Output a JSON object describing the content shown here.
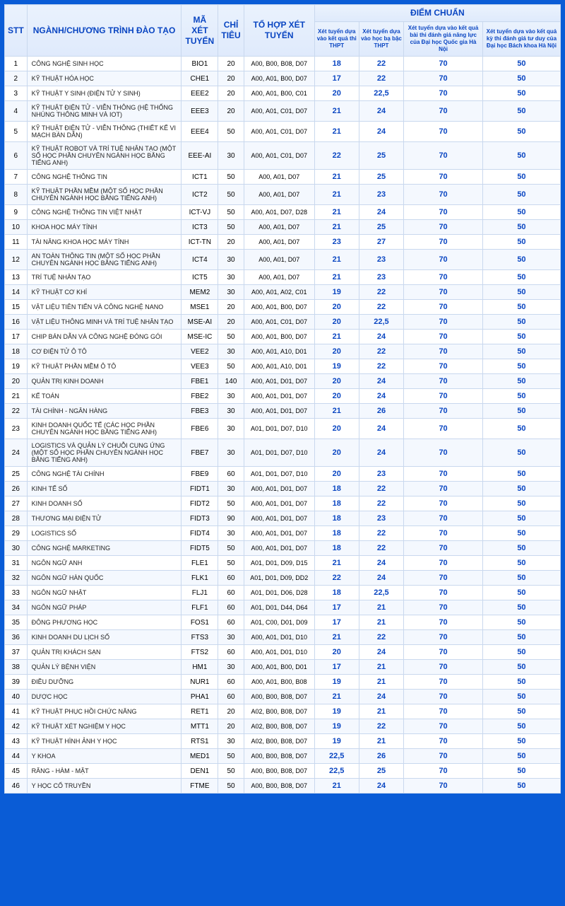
{
  "colors": {
    "page_bg": "#0a5cd6",
    "header_grad_top": "#eaf2fd",
    "header_grad_bottom": "#dfeafc",
    "header_text": "#0a46c2",
    "border": "#c9d8ee",
    "row_even_bg": "#f4f8fe",
    "row_odd_bg": "#ffffff",
    "score_text": "#0a46c2",
    "body_text": "#222222"
  },
  "typography": {
    "base_font": "Arial",
    "header_main_fontsize": 12,
    "subheader_fontsize": 8,
    "body_fontsize": 10,
    "name_fontsize": 9,
    "score_fontsize": 11
  },
  "headers": {
    "stt": "STT",
    "name": "NGÀNH/CHƯƠNG TRÌNH ĐÀO TẠO",
    "code": "MÃ XÉT TUYỂN",
    "quota": "CHỈ TIÊU",
    "combo": "TỔ HỢP XÉT TUYỂN",
    "score_group": "ĐIỂM CHUẨN",
    "score_cols": [
      "Xét tuyển dựa vào kết quả thi THPT",
      "Xét tuyển dựa vào học bạ bậc THPT",
      "Xét tuyển dựa vào kết quả bài thi đánh giá năng lực của Đại học Quốc gia Hà Nội",
      "Xét tuyển dựa vào kết quả kỳ thi đánh giá tư duy của Đại học Bách khoa Hà Nội"
    ]
  },
  "rows": [
    {
      "stt": "1",
      "name": "CÔNG NGHỆ SINH HỌC",
      "code": "BIO1",
      "quota": "20",
      "combo": "A00, B00, B08, D07",
      "s": [
        "18",
        "22",
        "70",
        "50"
      ]
    },
    {
      "stt": "2",
      "name": "KỸ THUẬT HÓA HỌC",
      "code": "CHE1",
      "quota": "20",
      "combo": "A00, A01, B00, D07",
      "s": [
        "17",
        "22",
        "70",
        "50"
      ]
    },
    {
      "stt": "3",
      "name": "KỸ THUẬT Y SINH (ĐIỆN TỬ Y SINH)",
      "code": "EEE2",
      "quota": "20",
      "combo": "A00, A01, B00, C01",
      "s": [
        "20",
        "22,5",
        "70",
        "50"
      ]
    },
    {
      "stt": "4",
      "name": "KỸ THUẬT ĐIỆN TỬ - VIỄN THÔNG (HỆ THỐNG NHÚNG THÔNG MINH VÀ IOT)",
      "code": "EEE3",
      "quota": "20",
      "combo": "A00, A01, C01, D07",
      "s": [
        "21",
        "24",
        "70",
        "50"
      ]
    },
    {
      "stt": "5",
      "name": "KỸ THUẬT ĐIỆN TỬ - VIỄN THÔNG (THIẾT KẾ VI MẠCH BÁN DẪN)",
      "code": "EEE4",
      "quota": "50",
      "combo": "A00, A01, C01, D07",
      "s": [
        "21",
        "24",
        "70",
        "50"
      ]
    },
    {
      "stt": "6",
      "name": "KỸ THUẬT ROBOT VÀ TRÍ TUỆ NHÂN TẠO (MỘT SỐ HỌC PHẦN CHUYÊN NGÀNH HỌC BẰNG TIẾNG ANH)",
      "code": "EEE-AI",
      "quota": "30",
      "combo": "A00, A01, C01, D07",
      "s": [
        "22",
        "25",
        "70",
        "50"
      ]
    },
    {
      "stt": "7",
      "name": "CÔNG NGHỆ THÔNG TIN",
      "code": "ICT1",
      "quota": "50",
      "combo": "A00, A01, D07",
      "s": [
        "21",
        "25",
        "70",
        "50"
      ]
    },
    {
      "stt": "8",
      "name": "KỸ THUẬT PHẦN MỀM (MỘT SỐ HỌC PHẦN CHUYÊN NGÀNH HỌC BẰNG TIẾNG ANH)",
      "code": "ICT2",
      "quota": "50",
      "combo": "A00, A01, D07",
      "s": [
        "21",
        "23",
        "70",
        "50"
      ]
    },
    {
      "stt": "9",
      "name": "CÔNG NGHỆ THÔNG TIN VIỆT NHẬT",
      "code": "ICT-VJ",
      "quota": "50",
      "combo": "A00, A01, D07, D28",
      "s": [
        "21",
        "24",
        "70",
        "50"
      ]
    },
    {
      "stt": "10",
      "name": "KHOA HỌC MÁY TÍNH",
      "code": "ICT3",
      "quota": "50",
      "combo": "A00, A01, D07",
      "s": [
        "21",
        "25",
        "70",
        "50"
      ]
    },
    {
      "stt": "11",
      "name": "TÀI NĂNG KHOA HỌC MÁY TÍNH",
      "code": "ICT-TN",
      "quota": "20",
      "combo": "A00, A01, D07",
      "s": [
        "23",
        "27",
        "70",
        "50"
      ]
    },
    {
      "stt": "12",
      "name": "AN TOÀN THÔNG TIN (MỘT SỐ HỌC PHẦN CHUYÊN NGÀNH HỌC BẰNG TIẾNG ANH)",
      "code": "ICT4",
      "quota": "30",
      "combo": "A00, A01, D07",
      "s": [
        "21",
        "23",
        "70",
        "50"
      ]
    },
    {
      "stt": "13",
      "name": "TRÍ TUỆ NHÂN TẠO",
      "code": "ICT5",
      "quota": "30",
      "combo": "A00, A01, D07",
      "s": [
        "21",
        "23",
        "70",
        "50"
      ]
    },
    {
      "stt": "14",
      "name": "KỸ THUẬT CƠ KHÍ",
      "code": "MEM2",
      "quota": "30",
      "combo": "A00, A01, A02, C01",
      "s": [
        "19",
        "22",
        "70",
        "50"
      ]
    },
    {
      "stt": "15",
      "name": "VẬT LIỆU TIÊN TIẾN VÀ CÔNG NGHỆ NANO",
      "code": "MSE1",
      "quota": "20",
      "combo": "A00, A01, B00, D07",
      "s": [
        "20",
        "22",
        "70",
        "50"
      ]
    },
    {
      "stt": "16",
      "name": "VẬT LIỆU THÔNG MINH VÀ TRÍ TUỆ NHÂN TẠO",
      "code": "MSE-AI",
      "quota": "20",
      "combo": "A00, A01, C01, D07",
      "s": [
        "20",
        "22,5",
        "70",
        "50"
      ]
    },
    {
      "stt": "17",
      "name": "CHIP BÁN DẪN VÀ CÔNG NGHỆ ĐÓNG GÓI",
      "code": "MSE-IC",
      "quota": "50",
      "combo": "A00, A01, B00, D07",
      "s": [
        "21",
        "24",
        "70",
        "50"
      ]
    },
    {
      "stt": "18",
      "name": "CƠ ĐIỆN TỬ Ô TÔ",
      "code": "VEE2",
      "quota": "30",
      "combo": "A00, A01, A10, D01",
      "s": [
        "20",
        "22",
        "70",
        "50"
      ]
    },
    {
      "stt": "19",
      "name": "KỸ THUẬT PHẦN MỀM Ô TÔ",
      "code": "VEE3",
      "quota": "50",
      "combo": "A00, A01, A10, D01",
      "s": [
        "19",
        "22",
        "70",
        "50"
      ]
    },
    {
      "stt": "20",
      "name": "QUẢN TRỊ KINH DOANH",
      "code": "FBE1",
      "quota": "140",
      "combo": "A00, A01, D01, D07",
      "s": [
        "20",
        "24",
        "70",
        "50"
      ]
    },
    {
      "stt": "21",
      "name": "KẾ TOÁN",
      "code": "FBE2",
      "quota": "30",
      "combo": "A00, A01, D01, D07",
      "s": [
        "20",
        "24",
        "70",
        "50"
      ]
    },
    {
      "stt": "22",
      "name": "TÀI CHÍNH - NGÂN HÀNG",
      "code": "FBE3",
      "quota": "30",
      "combo": "A00, A01, D01, D07",
      "s": [
        "21",
        "26",
        "70",
        "50"
      ]
    },
    {
      "stt": "23",
      "name": "KINH DOANH QUỐC TẾ (CÁC HỌC PHẦN CHUYÊN NGÀNH HỌC BẰNG TIẾNG ANH)",
      "code": "FBE6",
      "quota": "30",
      "combo": "A01, D01, D07, D10",
      "s": [
        "20",
        "24",
        "70",
        "50"
      ]
    },
    {
      "stt": "24",
      "name": "LOGISTICS VÀ QUẢN LÝ CHUỖI CUNG ỨNG (MỘT SỐ HỌC PHẦN CHUYÊN NGÀNH HỌC BẰNG TIẾNG ANH)",
      "code": "FBE7",
      "quota": "30",
      "combo": "A01, D01, D07, D10",
      "s": [
        "20",
        "24",
        "70",
        "50"
      ]
    },
    {
      "stt": "25",
      "name": "CÔNG NGHỆ TÀI CHÍNH",
      "code": "FBE9",
      "quota": "60",
      "combo": "A01, D01, D07, D10",
      "s": [
        "20",
        "23",
        "70",
        "50"
      ]
    },
    {
      "stt": "26",
      "name": "KINH TẾ SỐ",
      "code": "FIDT1",
      "quota": "30",
      "combo": "A00, A01, D01, D07",
      "s": [
        "18",
        "22",
        "70",
        "50"
      ]
    },
    {
      "stt": "27",
      "name": "KINH DOANH SỐ",
      "code": "FIDT2",
      "quota": "50",
      "combo": "A00, A01, D01, D07",
      "s": [
        "18",
        "22",
        "70",
        "50"
      ]
    },
    {
      "stt": "28",
      "name": "THƯƠNG MẠI ĐIỆN TỬ",
      "code": "FIDT3",
      "quota": "90",
      "combo": "A00, A01, D01, D07",
      "s": [
        "18",
        "23",
        "70",
        "50"
      ]
    },
    {
      "stt": "29",
      "name": "LOGISTICS SỐ",
      "code": "FIDT4",
      "quota": "30",
      "combo": "A00, A01, D01, D07",
      "s": [
        "18",
        "22",
        "70",
        "50"
      ]
    },
    {
      "stt": "30",
      "name": "CÔNG NGHỆ MARKETING",
      "code": "FIDT5",
      "quota": "50",
      "combo": "A00, A01, D01, D07",
      "s": [
        "18",
        "22",
        "70",
        "50"
      ]
    },
    {
      "stt": "31",
      "name": "NGÔN NGỮ ANH",
      "code": "FLE1",
      "quota": "50",
      "combo": "A01, D01, D09, D15",
      "s": [
        "21",
        "24",
        "70",
        "50"
      ]
    },
    {
      "stt": "32",
      "name": "NGÔN NGỮ HÀN QUỐC",
      "code": "FLK1",
      "quota": "60",
      "combo": "A01, D01, D09, DD2",
      "s": [
        "22",
        "24",
        "70",
        "50"
      ]
    },
    {
      "stt": "33",
      "name": "NGÔN NGỮ NHẬT",
      "code": "FLJ1",
      "quota": "60",
      "combo": "A01, D01, D06, D28",
      "s": [
        "18",
        "22,5",
        "70",
        "50"
      ]
    },
    {
      "stt": "34",
      "name": "NGÔN NGỮ PHÁP",
      "code": "FLF1",
      "quota": "60",
      "combo": "A01, D01, D44, D64",
      "s": [
        "17",
        "21",
        "70",
        "50"
      ]
    },
    {
      "stt": "35",
      "name": "ĐÔNG PHƯƠNG HỌC",
      "code": "FOS1",
      "quota": "60",
      "combo": "A01, C00, D01, D09",
      "s": [
        "17",
        "21",
        "70",
        "50"
      ]
    },
    {
      "stt": "36",
      "name": "KINH DOANH DU LỊCH SỐ",
      "code": "FTS3",
      "quota": "30",
      "combo": "A00, A01, D01, D10",
      "s": [
        "21",
        "22",
        "70",
        "50"
      ]
    },
    {
      "stt": "37",
      "name": "QUẢN TRỊ KHÁCH SẠN",
      "code": "FTS2",
      "quota": "60",
      "combo": "A00, A01, D01, D10",
      "s": [
        "20",
        "24",
        "70",
        "50"
      ]
    },
    {
      "stt": "38",
      "name": "QUẢN LÝ BỆNH VIỆN",
      "code": "HM1",
      "quota": "30",
      "combo": "A00, A01, B00, D01",
      "s": [
        "17",
        "21",
        "70",
        "50"
      ]
    },
    {
      "stt": "39",
      "name": "ĐIỀU DƯỠNG",
      "code": "NUR1",
      "quota": "60",
      "combo": "A00, A01, B00, B08",
      "s": [
        "19",
        "21",
        "70",
        "50"
      ]
    },
    {
      "stt": "40",
      "name": "DƯỢC HỌC",
      "code": "PHA1",
      "quota": "60",
      "combo": "A00, B00, B08, D07",
      "s": [
        "21",
        "24",
        "70",
        "50"
      ]
    },
    {
      "stt": "41",
      "name": "KỸ THUẬT PHỤC HỒI CHỨC NĂNG",
      "code": "RET1",
      "quota": "20",
      "combo": "A02, B00, B08, D07",
      "s": [
        "19",
        "21",
        "70",
        "50"
      ]
    },
    {
      "stt": "42",
      "name": "KỸ THUẬT XÉT NGHIỆM Y HỌC",
      "code": "MTT1",
      "quota": "20",
      "combo": "A02, B00, B08, D07",
      "s": [
        "19",
        "22",
        "70",
        "50"
      ]
    },
    {
      "stt": "43",
      "name": "KỸ THUẬT HÌNH ẢNH Y HỌC",
      "code": "RTS1",
      "quota": "30",
      "combo": "A02, B00, B08, D07",
      "s": [
        "19",
        "21",
        "70",
        "50"
      ]
    },
    {
      "stt": "44",
      "name": "Y KHOA",
      "code": "MED1",
      "quota": "50",
      "combo": "A00, B00, B08, D07",
      "s": [
        "22,5",
        "26",
        "70",
        "50"
      ]
    },
    {
      "stt": "45",
      "name": "RĂNG - HÀM - MẶT",
      "code": "DEN1",
      "quota": "50",
      "combo": "A00, B00, B08, D07",
      "s": [
        "22,5",
        "25",
        "70",
        "50"
      ]
    },
    {
      "stt": "46",
      "name": "Y HỌC CỔ TRUYỀN",
      "code": "FTME",
      "quota": "50",
      "combo": "A00, B00, B08, D07",
      "s": [
        "21",
        "24",
        "70",
        "50"
      ]
    }
  ]
}
